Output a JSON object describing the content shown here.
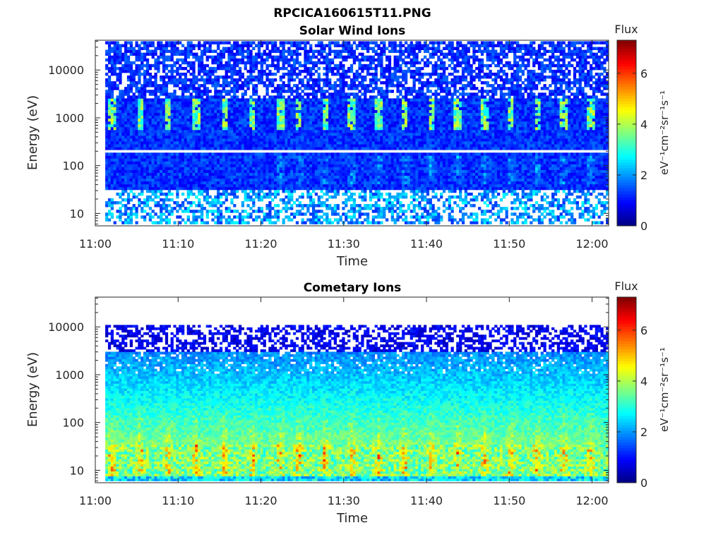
{
  "figure": {
    "title": "RPCICA160615T11.PNG"
  },
  "chart_data": [
    {
      "type": "heatmap",
      "title": "Solar Wind Ions",
      "xlabel": "Time",
      "ylabel": "Energy (eV)",
      "x_ticks": [
        "11:00",
        "11:10",
        "11:20",
        "11:30",
        "11:40",
        "11:50",
        "12:00"
      ],
      "xlim": [
        "11:00",
        "12:02"
      ],
      "y_scale": "log",
      "y_ticks": [
        "10",
        "100",
        "1000",
        "10000"
      ],
      "ylim": [
        5.5,
        42000
      ],
      "colorbar": {
        "label": "Flux",
        "units": "eV⁻¹cm⁻²sr⁻¹s⁻¹",
        "ticks": [
          "0",
          "2",
          "4",
          "6"
        ],
        "range": [
          0,
          7.3
        ],
        "colormap": "jet"
      },
      "features": "Flux ~1-2 across energies; periodic bursts of ~4 at 600-2500 eV; white gap line at ~200 eV; sparse low-energy band below ~30 eV"
    },
    {
      "type": "heatmap",
      "title": "Cometary Ions",
      "xlabel": "Time",
      "ylabel": "Energy (eV)",
      "x_ticks": [
        "11:00",
        "11:10",
        "11:20",
        "11:30",
        "11:40",
        "11:50",
        "12:00"
      ],
      "xlim": [
        "11:00",
        "12:02"
      ],
      "y_scale": "log",
      "y_ticks": [
        "10",
        "100",
        "1000",
        "10000"
      ],
      "ylim": [
        5.5,
        42000
      ],
      "colorbar": {
        "label": "Flux",
        "units": "eV⁻¹cm⁻²sr⁻¹s⁻¹",
        "ticks": [
          "0",
          "2",
          "4",
          "6"
        ],
        "range": [
          0,
          7.3
        ],
        "colormap": "jet"
      },
      "features": "Strong flux 4-6 at 8-30 eV with periodic peaks up to ~6.5; flux decreasing with energy; sparse above ~3000 eV, no data above ~11000 eV"
    }
  ]
}
